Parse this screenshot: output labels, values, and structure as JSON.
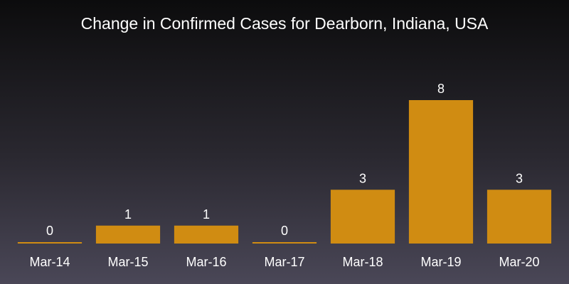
{
  "chart_data": {
    "type": "bar",
    "title": "Change in Confirmed Cases for Dearborn, Indiana, USA",
    "categories": [
      "Mar-14",
      "Mar-15",
      "Mar-16",
      "Mar-17",
      "Mar-18",
      "Mar-19",
      "Mar-20"
    ],
    "values": [
      0,
      1,
      1,
      0,
      3,
      8,
      3
    ],
    "data_labels": [
      "0",
      "1",
      "1",
      "0",
      "3",
      "8",
      "3"
    ],
    "xlabel": "",
    "ylabel": "",
    "ylim": [
      0,
      8
    ],
    "grid": false,
    "legend": "none",
    "bar_color": "#d08c12",
    "background_top": "#0c0c0d",
    "background_bottom": "#4a4757"
  }
}
